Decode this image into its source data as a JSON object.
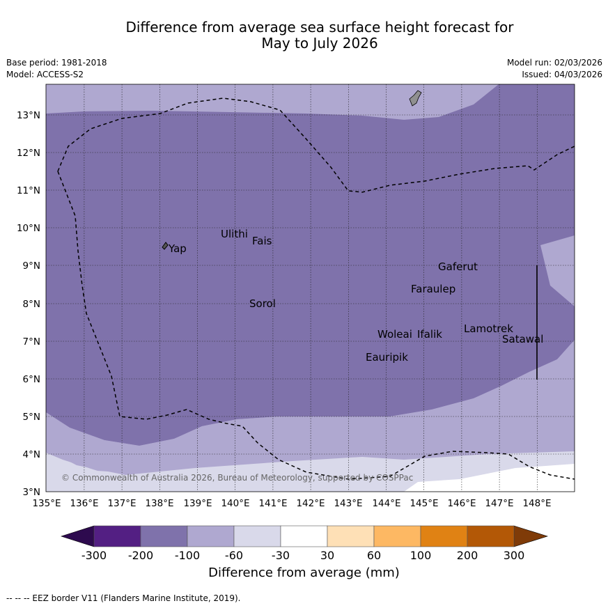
{
  "title": {
    "line1": "Difference from average sea surface height forecast for",
    "line2": "May to July 2026"
  },
  "meta": {
    "base_period": "Base period: 1981-2018",
    "model": "Model: ACCESS-S2",
    "model_run": "Model run: 02/03/2026",
    "issued": "Issued: 04/03/2026"
  },
  "map": {
    "lon_labels": [
      "135°E",
      "136°E",
      "137°E",
      "138°E",
      "139°E",
      "140°E",
      "141°E",
      "142°E",
      "143°E",
      "144°E",
      "145°E",
      "146°E",
      "147°E",
      "148°E"
    ],
    "lat_labels": [
      "13°N",
      "12°N",
      "11°N",
      "10°N",
      "9°N",
      "8°N",
      "7°N",
      "6°N",
      "5°N",
      "4°N",
      "3°N"
    ],
    "places": [
      "Ulithi",
      "Fais",
      "Yap",
      "Gaferut",
      "Faraulep",
      "Sorol",
      "Lamotrek",
      "Woleai",
      "Ifalik",
      "Satawal",
      "Eauripik"
    ],
    "copyright": "© Commonwealth of Australia 2026, Bureau of Meteorology, supported by COSPPac"
  },
  "colorbar": {
    "ticks": [
      "-300",
      "-200",
      "-100",
      "-60",
      "-30",
      "30",
      "60",
      "100",
      "200",
      "300"
    ],
    "colors": [
      "#531f83",
      "#7f72ab",
      "#afa8d0",
      "#d9d9ea",
      "#ffffff",
      "#fee0b6",
      "#fdb863",
      "#e08214",
      "#b35806"
    ],
    "under_color": "#2d0a4e",
    "over_color": "#7f3b08",
    "title": "Difference from average (mm)"
  },
  "footnote": "--  --  -- EEZ border V11 (Flanders Marine Institute, 2019)."
}
